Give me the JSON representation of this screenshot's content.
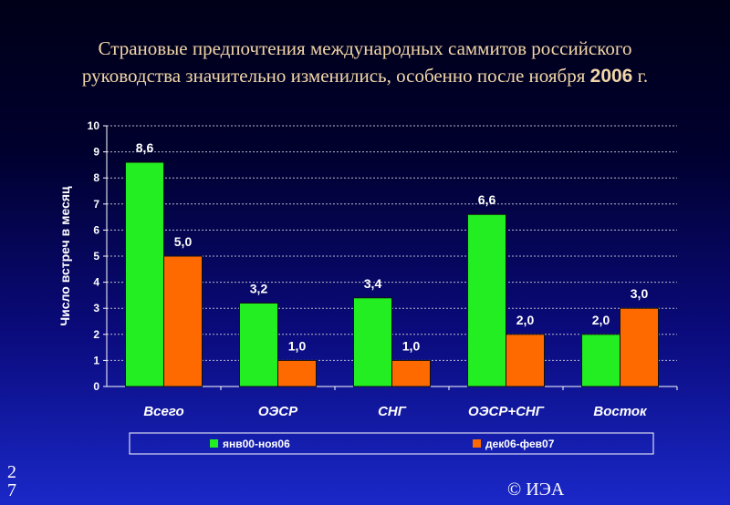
{
  "slide": {
    "title_line1": "Страновые предпочтения международных саммитов российского",
    "title_line2_text": "руководства значительно изменились, особенно после ноября ",
    "title_line2_year": "2006",
    "title_line2_suffix": " г.",
    "page_number": "27",
    "copyright": "© ИЭА"
  },
  "colors": {
    "series1": "#22ee22",
    "series2": "#ff6a00",
    "grid": "#bbbbcc",
    "axis_text": "#ffffff",
    "label_text": "#ffffff"
  },
  "chart_data": {
    "type": "bar",
    "title": "",
    "xlabel": "",
    "ylabel": "Число встреч в месяц",
    "ylim": [
      0,
      10
    ],
    "yticks": [
      "0",
      "1",
      "2",
      "3",
      "4",
      "5",
      "6",
      "7",
      "8",
      "9",
      "10"
    ],
    "categories": [
      "Всего",
      "ОЭСР",
      "СНГ",
      "ОЭСР+СНГ",
      "Восток"
    ],
    "series": [
      {
        "name": "янв00-ноя06",
        "values": [
          8.6,
          3.2,
          3.4,
          6.6,
          2.0
        ],
        "labels": [
          "8,6",
          "3,2",
          "3,4",
          "6,6",
          "2,0"
        ]
      },
      {
        "name": "дек06-фев07",
        "values": [
          5.0,
          1.0,
          1.0,
          2.0,
          3.0
        ],
        "labels": [
          "5,0",
          "1,0",
          "1,0",
          "2,0",
          "3,0"
        ]
      }
    ],
    "grid": true,
    "legend_position": "bottom"
  }
}
